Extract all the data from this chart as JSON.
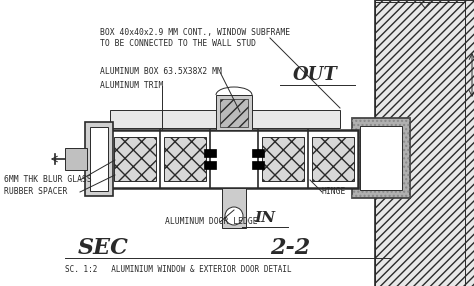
{
  "bg_color": "#ffffff",
  "line_color": "#2a2a2a",
  "wall_fill": "#c8c8c8",
  "wall_hatch_fill": "#e0e0e0",
  "title_sec": "SEC",
  "title_num": "2-2",
  "subtitle": "SC. 1:2   ALUMINIUM WINDOW & EXTERIOR DOOR DETAIL",
  "out_label": "OUT",
  "in_label": "IN",
  "ann_box40": "BOX 40x40x2.9 MM CONT., WINDOW SUBFRAME",
  "ann_box40b": "TO BE CONNECTED TO THE WALL STUD",
  "ann_albox": "ALUMINUM BOX 63.5X38X2 MM",
  "ann_trim": "ALUMINUM TRIM",
  "ann_glass": "6MM THK BLUR GLASS",
  "ann_rubber": "RUBBER SPACER",
  "ann_ledge": "ALUMINUM DOOR LEDGE",
  "ann_hinge": "HINGE",
  "figw": 4.74,
  "figh": 2.86,
  "dpi": 100
}
